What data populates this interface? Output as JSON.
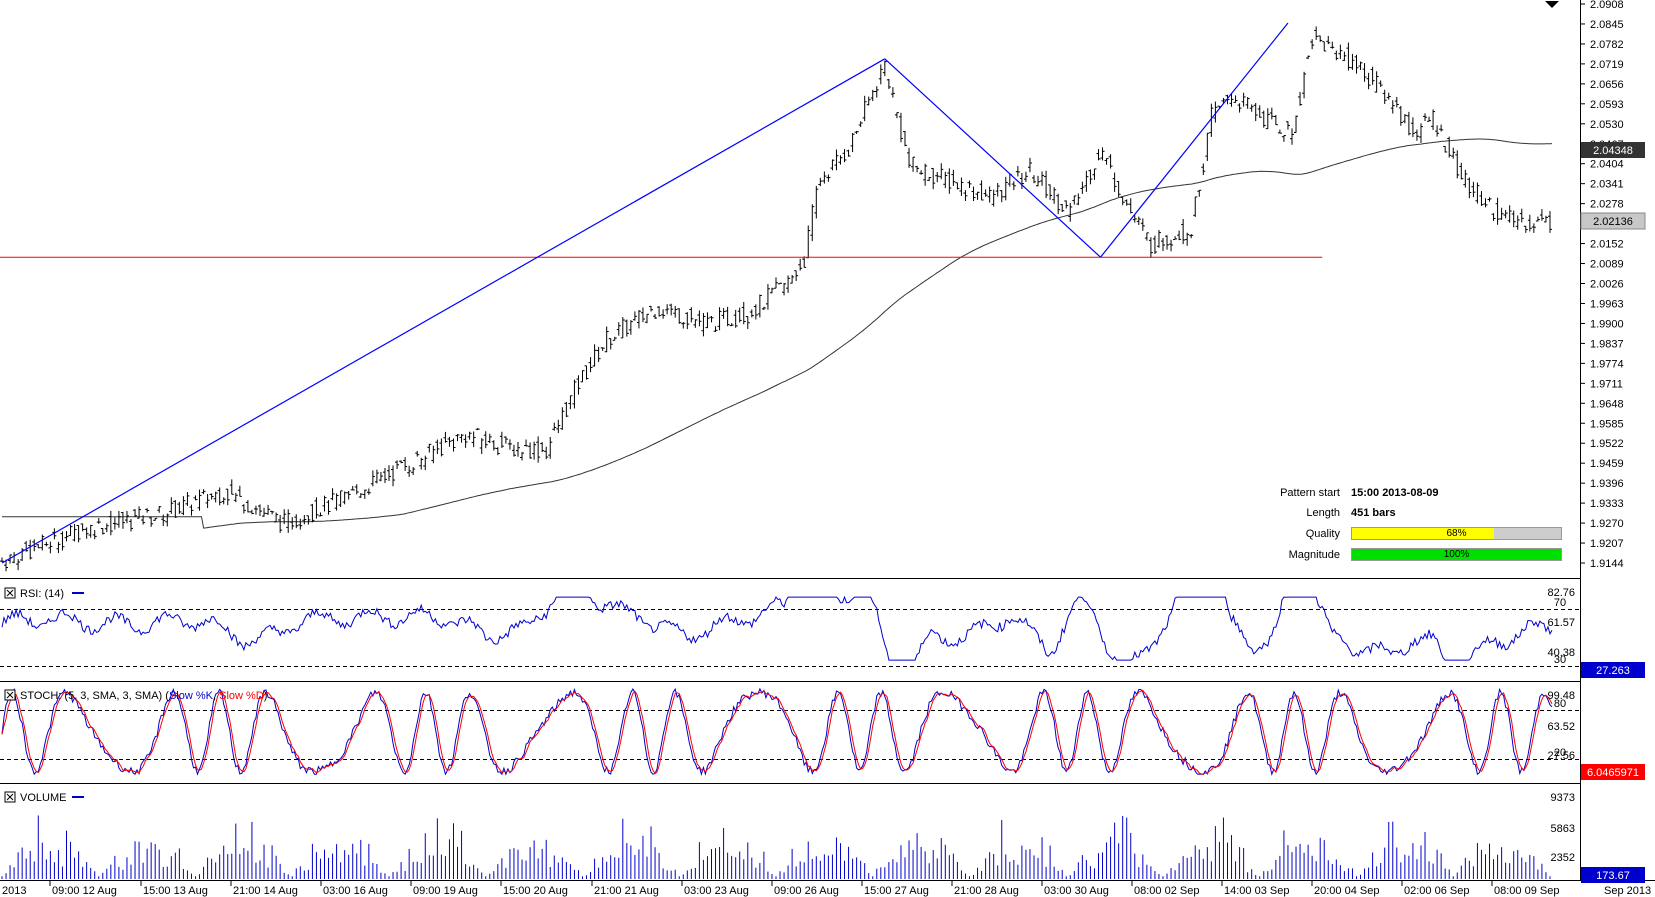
{
  "price_pane": {
    "y_ticks": [
      "2.0908",
      "2.0845",
      "2.0782",
      "2.0719",
      "2.0656",
      "2.0593",
      "2.0530",
      "2.0467",
      "2.0404",
      "2.0341",
      "2.0278",
      "2.0215",
      "2.0152",
      "2.0089",
      "2.0026",
      "1.9963",
      "1.9900",
      "1.9837",
      "1.9774",
      "1.9711",
      "1.9648",
      "1.9585",
      "1.9522",
      "1.9459",
      "1.9396",
      "1.9333",
      "1.9270",
      "1.9207",
      "1.9144"
    ],
    "ma_label": "2.04348",
    "current_label": "2.02136",
    "ma_color": "#333333",
    "current_color": "#bdbdbd"
  },
  "pattern_info": {
    "start_label": "Pattern start",
    "start_value": "15:00 2013-08-09",
    "length_label": "Length",
    "length_value": "451 bars",
    "quality_label": "Quality",
    "quality_value": "68%",
    "quality_pct": 68,
    "quality_color": "#ffff00",
    "magnitude_label": "Magnitude",
    "magnitude_value": "100%",
    "magnitude_pct": 100,
    "magnitude_color": "#00e000"
  },
  "rsi_pane": {
    "title": "RSI: (14)",
    "y_ticks": [
      "82.76",
      "61.57",
      "40.38"
    ],
    "level_high": "70",
    "level_low": "30",
    "current_label": "27.263",
    "current_color": "#0000cc",
    "line_color": "#0000cc"
  },
  "stoch_pane": {
    "title_prefix": "STOCH: (5, 3, SMA, 3, SMA)",
    "k_label": "Slow %K",
    "d_label": "Slow %D",
    "y_ticks": [
      "99.48",
      "63.52",
      "27.56"
    ],
    "level_high": "80",
    "level_low": "20",
    "current_label": "6.0465971",
    "current_color": "#ff0000",
    "k_color": "#0000cc",
    "d_color": "#ff0000"
  },
  "volume_pane": {
    "title": "VOLUME",
    "y_ticks": [
      "9373",
      "5863",
      "2352"
    ],
    "current_label": "173.67",
    "current_color": "#0000cc",
    "bar_color": "#0000cc"
  },
  "x_axis": {
    "labels": [
      "2013",
      "09:00 12 Aug",
      "15:00 13 Aug",
      "21:00 14 Aug",
      "03:00 16 Aug",
      "09:00 19 Aug",
      "15:00 20 Aug",
      "21:00 21 Aug",
      "03:00 23 Aug",
      "09:00 26 Aug",
      "15:00 27 Aug",
      "21:00 28 Aug",
      "03:00 30 Aug",
      "08:00 02 Sep",
      "14:00 03 Sep",
      "20:00 04 Sep",
      "02:00 06 Sep",
      "08:00 09 Sep",
      "Sep 2013"
    ]
  },
  "chart_data": {
    "type": "ohlc",
    "instrument_note": "",
    "close_anchors": [
      [
        0,
        1.915
      ],
      [
        40,
        1.925
      ],
      [
        80,
        1.93
      ],
      [
        110,
        1.937
      ],
      [
        140,
        1.927
      ],
      [
        170,
        1.935
      ],
      [
        200,
        1.945
      ],
      [
        230,
        1.955
      ],
      [
        250,
        1.951
      ],
      [
        270,
        1.95
      ],
      [
        285,
        1.97
      ],
      [
        300,
        1.985
      ],
      [
        325,
        1.995
      ],
      [
        350,
        1.99
      ],
      [
        370,
        1.993
      ],
      [
        390,
        2.003
      ],
      [
        398,
        2.01
      ],
      [
        405,
        2.035
      ],
      [
        420,
        2.045
      ],
      [
        438,
        2.072
      ],
      [
        450,
        2.04
      ],
      [
        470,
        2.035
      ],
      [
        490,
        2.03
      ],
      [
        510,
        2.038
      ],
      [
        530,
        2.025
      ],
      [
        545,
        2.045
      ],
      [
        560,
        2.025
      ],
      [
        570,
        2.015
      ],
      [
        590,
        2.02
      ],
      [
        600,
        2.055
      ],
      [
        610,
        2.062
      ],
      [
        625,
        2.055
      ],
      [
        640,
        2.05
      ],
      [
        650,
        2.08
      ],
      [
        670,
        2.073
      ],
      [
        690,
        2.06
      ],
      [
        700,
        2.05
      ],
      [
        710,
        2.055
      ],
      [
        725,
        2.035
      ],
      [
        745,
        2.023
      ],
      [
        760,
        2.022
      ]
    ],
    "pattern_lines": [
      [
        [
          0,
          1.9144
        ],
        [
          438,
          2.0735
        ]
      ],
      [
        [
          438,
          2.0735
        ],
        [
          545,
          2.0109
        ]
      ],
      [
        [
          545,
          2.0109
        ],
        [
          638,
          2.0848
        ]
      ]
    ],
    "support_level": 2.0109,
    "rsi_levels": [
      70,
      30
    ],
    "stoch_levels": [
      80,
      20
    ]
  }
}
